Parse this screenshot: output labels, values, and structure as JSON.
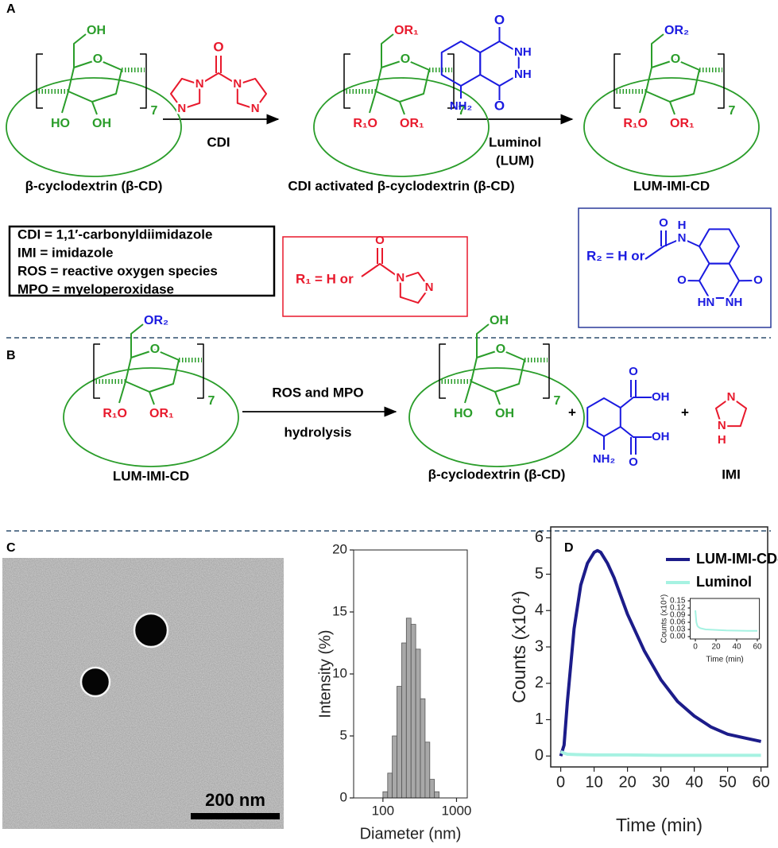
{
  "panel_labels": [
    "A",
    "B",
    "C",
    "D"
  ],
  "scheme_a": {
    "cd1": {
      "atoms": [
        "O",
        "OH",
        "HO",
        "OH"
      ],
      "repeat": "7",
      "name": "β-cyclodextrin (β-CD)"
    },
    "reagent1": {
      "atoms": [
        "O",
        "N",
        "N",
        "N",
        "N"
      ],
      "label": "CDI"
    },
    "cd2": {
      "atoms": [
        "O",
        "OR₁",
        "R₁O",
        "OR₁"
      ],
      "repeat": "7",
      "name": "CDI activated β-cyclodextrin (β-CD)"
    },
    "reagent2": {
      "atoms": [
        "O",
        "NH",
        "NH",
        "O",
        "NH₂"
      ],
      "label": "Luminol",
      "abbreviation": "(LUM)"
    },
    "cd3": {
      "atoms": [
        "O",
        "OR₂",
        "R₁O",
        "OR₁"
      ],
      "repeat": "7",
      "name": "LUM-IMI-CD"
    },
    "legend_box": [
      "CDI = 1,1′-carbonyldiimidazole",
      "IMI = imidazole",
      "ROS = reactive oxygen species",
      "MPO = myeloperoxidase"
    ],
    "r1_box": {
      "text": "R₁ = H or",
      "atoms": [
        "O",
        "N",
        "N"
      ]
    },
    "r2_box": {
      "text": "R₂ = H or",
      "atoms": [
        "O",
        "H",
        "N",
        "O",
        "O",
        "HN",
        "NH"
      ]
    }
  },
  "scheme_b": {
    "reactant": {
      "atoms": [
        "O",
        "OR₂",
        "R₁O",
        "OR₁"
      ],
      "repeat": "7",
      "name": "LUM-IMI-CD"
    },
    "conditions": [
      "ROS and MPO",
      "hydrolysis"
    ],
    "product_cd": {
      "atoms": [
        "O",
        "OH",
        "HO",
        "OH"
      ],
      "repeat": "7",
      "name": "β-cyclodextrin (β-CD)"
    },
    "plus": [
      "+",
      "+"
    ],
    "acid": {
      "atoms": [
        "O",
        "OH",
        "OH",
        "O",
        "NH₂"
      ]
    },
    "imidazole": {
      "atoms": [
        "N",
        "N",
        "H"
      ],
      "name": "IMI"
    }
  },
  "panel_c": {
    "scale_bar": "200 nm"
  },
  "chart_data": [
    {
      "type": "histogram",
      "xlabel": "Diameter (nm)",
      "ylabel": "Intensity (%)",
      "xscale": "log",
      "bins": [
        100,
        116,
        134,
        155,
        180,
        208,
        241,
        279,
        323,
        374,
        433,
        501,
        580
      ],
      "counts": [
        0.5,
        2,
        5,
        9,
        12.5,
        14.5,
        14,
        12,
        8,
        4.5,
        1.5,
        0.5
      ],
      "color": "#a8a8a8",
      "xlim": [
        40,
        1400
      ],
      "ylim": [
        0,
        20
      ],
      "xticks": [
        100,
        1000
      ],
      "yticks": [
        0,
        5,
        10,
        15,
        20
      ]
    },
    {
      "type": "line",
      "xlabel": "Time (min)",
      "ylabel": "Counts (x10⁴)",
      "xlim": [
        -3,
        62
      ],
      "ylim": [
        -0.3,
        6.3
      ],
      "xticks": [
        0,
        10,
        20,
        30,
        40,
        50,
        60
      ],
      "yticks": [
        0,
        1,
        2,
        3,
        4,
        5,
        6
      ],
      "legend": "upper right",
      "series": [
        {
          "name": "LUM-IMI-CD-NP",
          "color": "#1c1c8a",
          "x": [
            0,
            1,
            2,
            4,
            6,
            8,
            10,
            11,
            12,
            14,
            16,
            18,
            20,
            25,
            30,
            35,
            40,
            45,
            50,
            55,
            60
          ],
          "values": [
            0,
            0.3,
            1.5,
            3.5,
            4.7,
            5.3,
            5.6,
            5.65,
            5.6,
            5.3,
            4.9,
            4.4,
            3.9,
            2.9,
            2.1,
            1.5,
            1.1,
            0.8,
            0.6,
            0.5,
            0.4
          ]
        },
        {
          "name": "Luminol",
          "color": "#a6f2e2",
          "x": [
            0,
            1,
            2,
            5,
            10,
            20,
            30,
            40,
            50,
            60
          ],
          "values": [
            0.12,
            0.08,
            0.05,
            0.04,
            0.03,
            0.03,
            0.02,
            0.02,
            0.02,
            0.02
          ]
        }
      ]
    },
    {
      "type": "line",
      "xlabel": "Time (min)",
      "ylabel": "Counts (x10⁴)",
      "color": "#a6f2e2",
      "x": [
        0,
        1,
        2,
        3,
        5,
        10,
        20,
        30,
        40,
        50,
        60
      ],
      "values": [
        0.11,
        0.06,
        0.045,
        0.04,
        0.035,
        0.03,
        0.028,
        0.026,
        0.025,
        0.024,
        0.024
      ],
      "xlim": [
        -5,
        62
      ],
      "ylim": [
        -0.01,
        0.16
      ],
      "xticks": [
        0,
        20,
        40,
        60
      ],
      "yticks": [
        {
          "value": 0,
          "label": "0.00"
        },
        0.03,
        0.06,
        0.09,
        0.12,
        0.15
      ]
    }
  ]
}
